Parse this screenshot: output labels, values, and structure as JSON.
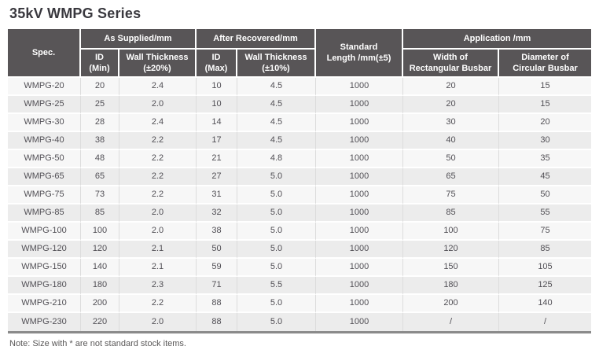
{
  "title": "35kV WMPG Series",
  "note": "Note: Size with * are not standard stock items.",
  "colors": {
    "header_bg": "#585557",
    "header_text": "#ffffff",
    "row_odd_bg": "#f7f7f7",
    "row_even_bg": "#ececec",
    "cell_text": "#514f55",
    "table_bottom_border": "#8a8a8a"
  },
  "table": {
    "header": {
      "spec": "Spec.",
      "groups": {
        "as_supplied": "As Supplied/mm",
        "after_recovered": "After Recovered/mm",
        "application": "Application /mm"
      },
      "standard_length": {
        "line1": "Standard",
        "line2": "Length /mm(±5)"
      },
      "sub": {
        "id_min": {
          "line1": "ID",
          "line2": "(Min)"
        },
        "wall_thickness_supplied": {
          "line1": "Wall Thickness",
          "line2": "(±20%)"
        },
        "id_max": {
          "line1": "ID",
          "line2": "(Max)"
        },
        "wall_thickness_recovered": {
          "line1": "Wall Thickness",
          "line2": "(±10%)"
        },
        "width_rect": {
          "line1": "Width of",
          "line2": "Rectangular Busbar"
        },
        "diameter_circ": {
          "line1": "Diameter of",
          "line2": "Circular Busbar"
        }
      }
    },
    "rows": [
      [
        "WMPG-20",
        "20",
        "2.4",
        "10",
        "4.5",
        "1000",
        "20",
        "15"
      ],
      [
        "WMPG-25",
        "25",
        "2.0",
        "10",
        "4.5",
        "1000",
        "20",
        "15"
      ],
      [
        "WMPG-30",
        "28",
        "2.4",
        "14",
        "4.5",
        "1000",
        "30",
        "20"
      ],
      [
        "WMPG-40",
        "38",
        "2.2",
        "17",
        "4.5",
        "1000",
        "40",
        "30"
      ],
      [
        "WMPG-50",
        "48",
        "2.2",
        "21",
        "4.8",
        "1000",
        "50",
        "35"
      ],
      [
        "WMPG-65",
        "65",
        "2.2",
        "27",
        "5.0",
        "1000",
        "65",
        "45"
      ],
      [
        "WMPG-75",
        "73",
        "2.2",
        "31",
        "5.0",
        "1000",
        "75",
        "50"
      ],
      [
        "WMPG-85",
        "85",
        "2.0",
        "32",
        "5.0",
        "1000",
        "85",
        "55"
      ],
      [
        "WMPG-100",
        "100",
        "2.0",
        "38",
        "5.0",
        "1000",
        "100",
        "75"
      ],
      [
        "WMPG-120",
        "120",
        "2.1",
        "50",
        "5.0",
        "1000",
        "120",
        "85"
      ],
      [
        "WMPG-150",
        "140",
        "2.1",
        "59",
        "5.0",
        "1000",
        "150",
        "105"
      ],
      [
        "WMPG-180",
        "180",
        "2.3",
        "71",
        "5.5",
        "1000",
        "180",
        "125"
      ],
      [
        "WMPG-210",
        "200",
        "2.2",
        "88",
        "5.0",
        "1000",
        "200",
        "140"
      ],
      [
        "WMPG-230",
        "220",
        "2.0",
        "88",
        "5.0",
        "1000",
        "/",
        "/"
      ]
    ]
  }
}
